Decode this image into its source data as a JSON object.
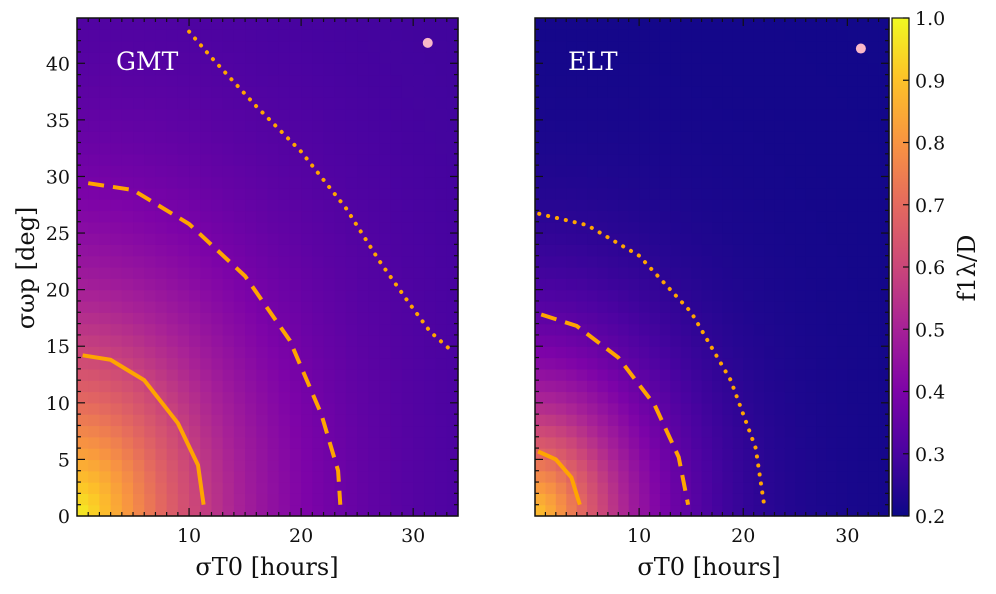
{
  "chart_data": {
    "type": "heatmap",
    "colormap": "plasma",
    "colorbar": {
      "label": "f1λ/D",
      "range": [
        0.2,
        1.0
      ],
      "ticks": [
        "0.2",
        "0.3",
        "0.4",
        "0.5",
        "0.6",
        "0.7",
        "0.8",
        "0.9",
        "1.0"
      ]
    },
    "x_axis": {
      "label": "σT0 [hours]",
      "range": [
        0,
        34
      ],
      "ticks": [
        "10",
        "20",
        "30"
      ]
    },
    "y_axis": {
      "label": "σωp [deg]",
      "range": [
        0,
        44
      ],
      "ticks": [
        "0",
        "5",
        "10",
        "15",
        "20",
        "25",
        "30",
        "35",
        "40"
      ]
    },
    "panels": [
      {
        "name": "GMT",
        "marker": {
          "x": 31.3,
          "y": 41.8,
          "color": "#f9b8c8"
        },
        "field": {
          "peak": 0.98,
          "scale_x": 33.0,
          "scale_y": 45.0,
          "floor": 0.28,
          "exponent": 1.2
        },
        "contours": [
          {
            "style": "solid",
            "points": [
              [
                0.5,
                14.2
              ],
              [
                3,
                13.8
              ],
              [
                6,
                12.0
              ],
              [
                9,
                8.2
              ],
              [
                10.8,
                4.5
              ],
              [
                11.3,
                1.0
              ]
            ]
          },
          {
            "style": "dashed",
            "points": [
              [
                1.0,
                29.4
              ],
              [
                5,
                28.8
              ],
              [
                10,
                25.8
              ],
              [
                15,
                21.2
              ],
              [
                19,
                15.5
              ],
              [
                21.8,
                9.0
              ],
              [
                23.3,
                4.0
              ],
              [
                23.5,
                1.0
              ]
            ]
          },
          {
            "style": "dotted",
            "points": [
              [
                10.0,
                42.8
              ],
              [
                12,
                40.5
              ],
              [
                16,
                36.2
              ],
              [
                20,
                32.2
              ],
              [
                24,
                27.2
              ],
              [
                27,
                22.5
              ],
              [
                29.5,
                19.0
              ],
              [
                31.5,
                16.3
              ],
              [
                33.3,
                14.7
              ]
            ]
          }
        ]
      },
      {
        "name": "ELT",
        "marker": {
          "x": 31.3,
          "y": 41.3,
          "color": "#f9b8c8"
        },
        "field": {
          "peak": 0.9,
          "scale_x": 25.0,
          "scale_y": 30.0,
          "floor": 0.21,
          "exponent": 1.3
        },
        "contours": [
          {
            "style": "solid",
            "points": [
              [
                0.3,
                5.7
              ],
              [
                2,
                5.0
              ],
              [
                3.5,
                3.4
              ],
              [
                4.3,
                1.0
              ]
            ]
          },
          {
            "style": "dashed",
            "points": [
              [
                0.6,
                17.8
              ],
              [
                4,
                16.8
              ],
              [
                8,
                14.0
              ],
              [
                11.5,
                9.8
              ],
              [
                13.8,
                5.2
              ],
              [
                14.7,
                1.0
              ]
            ]
          },
          {
            "style": "dotted",
            "points": [
              [
                0.4,
                26.7
              ],
              [
                5,
                25.7
              ],
              [
                10,
                23.0
              ],
              [
                15,
                18.0
              ],
              [
                18.8,
                12.0
              ],
              [
                21.2,
                6.0
              ],
              [
                22.0,
                1.0
              ]
            ]
          }
        ]
      }
    ]
  }
}
